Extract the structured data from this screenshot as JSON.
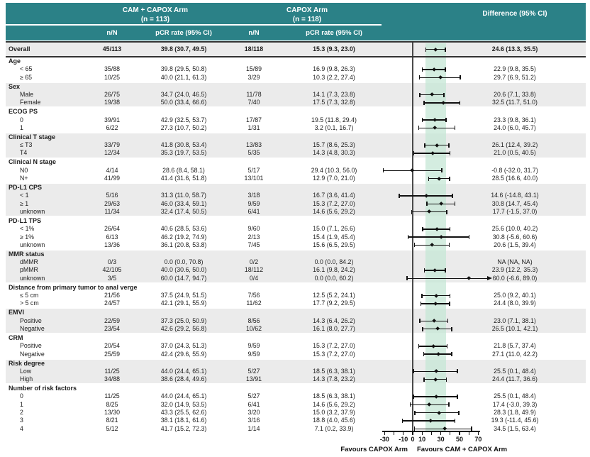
{
  "header": {
    "arm1_title": "CAM + CAPOX Arm",
    "arm1_n": "(n = 113)",
    "arm2_title": "CAPOX Arm",
    "arm2_n": "(n = 118)",
    "diff_title": "Difference (95% CI)",
    "col_nN": "n/N",
    "col_pcr": "pCR rate (95% CI)"
  },
  "footer": {
    "favours_left": "Favours CAPOX Arm",
    "favours_right": "Favours CAM + CAPOX Arm"
  },
  "colors": {
    "header_teal": "#2b8187",
    "stripe_gray": "#ebebeb",
    "band_mint": "#c6e7d6",
    "marker_black": "#111111",
    "zero_line": "#4a4a4a"
  },
  "chart_data": {
    "type": "forest",
    "x_axis": {
      "min": -30,
      "max": 70,
      "minor_ticks": [
        -30,
        -20,
        -10,
        0,
        10,
        20,
        30,
        40,
        50,
        60,
        70
      ],
      "tick_labels": [
        -30,
        -10,
        0,
        10,
        30,
        50,
        70
      ],
      "reference_line": 0
    },
    "shaded_band": [
      13.3,
      35.5
    ],
    "sections": [
      {
        "title": null,
        "overall": true,
        "shade": true,
        "items": [
          {
            "label": "Overall",
            "bold": true,
            "n1": "45/113",
            "pcr1": "39.8 (30.7, 49.5)",
            "n2": "18/118",
            "pcr2": "15.3 (9.3, 23.0)",
            "diff": "24.6 (13.3, 35.5)",
            "est": 24.6,
            "lo": 13.3,
            "hi": 35.5
          }
        ]
      },
      {
        "title": "Age",
        "shade": false,
        "items": [
          {
            "label": "< 65",
            "n1": "35/88",
            "pcr1": "39.8 (29.5, 50.8)",
            "n2": "15/89",
            "pcr2": "16.9 (9.8, 26.3)",
            "diff": "22.9 (9.8, 35.5)",
            "est": 22.9,
            "lo": 9.8,
            "hi": 35.5
          },
          {
            "label": "≥ 65",
            "n1": "10/25",
            "pcr1": "40.0 (21.1, 61.3)",
            "n2": "3/29",
            "pcr2": "10.3 (2.2, 27.4)",
            "diff": "29.7 (6.9, 51.2)",
            "est": 29.7,
            "lo": 6.9,
            "hi": 51.2
          }
        ]
      },
      {
        "title": "Sex",
        "shade": true,
        "items": [
          {
            "label": "Male",
            "n1": "26/75",
            "pcr1": "34.7 (24.0, 46.5)",
            "n2": "11/78",
            "pcr2": "14.1 (7.3, 23.8)",
            "diff": "20.6 (7.1, 33.8)",
            "est": 20.6,
            "lo": 7.1,
            "hi": 33.8
          },
          {
            "label": "Female",
            "n1": "19/38",
            "pcr1": "50.0 (33.4, 66.6)",
            "n2": "7/40",
            "pcr2": "17.5 (7.3, 32.8)",
            "diff": "32.5 (11.7, 51.0)",
            "est": 32.5,
            "lo": 11.7,
            "hi": 51.0
          }
        ]
      },
      {
        "title": "ECOG PS",
        "shade": false,
        "items": [
          {
            "label": "0",
            "n1": "39/91",
            "pcr1": "42.9 (32.5, 53.7)",
            "n2": "17/87",
            "pcr2": "19.5 (11.8, 29.4)",
            "diff": "23.3 (9.8, 36.1)",
            "est": 23.3,
            "lo": 9.8,
            "hi": 36.1
          },
          {
            "label": "1",
            "n1": "6/22",
            "pcr1": "27.3 (10.7, 50.2)",
            "n2": "1/31",
            "pcr2": "3.2 (0.1, 16.7)",
            "diff": "24.0 (6.0, 45.7)",
            "est": 24.0,
            "lo": 6.0,
            "hi": 45.7
          }
        ]
      },
      {
        "title": "Clinical T stage",
        "shade": true,
        "items": [
          {
            "label": "≤ T3",
            "n1": "33/79",
            "pcr1": "41.8 (30.8, 53.4)",
            "n2": "13/83",
            "pcr2": "15.7 (8.6, 25.3)",
            "diff": "26.1 (12.4, 39.2)",
            "est": 26.1,
            "lo": 12.4,
            "hi": 39.2
          },
          {
            "label": "T4",
            "n1": "12/34",
            "pcr1": "35.3 (19.7, 53.5)",
            "n2": "5/35",
            "pcr2": "14.3 (4.8, 30.3)",
            "diff": "21.0 (0.5, 40.5)",
            "est": 21.0,
            "lo": 0.5,
            "hi": 40.5
          }
        ]
      },
      {
        "title": "Clinical N stage",
        "shade": false,
        "items": [
          {
            "label": "N0",
            "n1": "4/14",
            "pcr1": "28.6 (8.4, 58.1)",
            "n2": "5/17",
            "pcr2": "29.4 (10.3, 56.0)",
            "diff": "-0.8 (-32.0, 31.7)",
            "est": -0.8,
            "lo": -32.0,
            "hi": 31.7
          },
          {
            "label": "N+",
            "n1": "41/99",
            "pcr1": "41.4 (31.6, 51.8)",
            "n2": "13/101",
            "pcr2": "12.9 (7.0, 21.0)",
            "diff": "28.5 (16.6, 40.0)",
            "est": 28.5,
            "lo": 16.6,
            "hi": 40.0
          }
        ]
      },
      {
        "title": "PD-L1 CPS",
        "shade": true,
        "items": [
          {
            "label": "< 1",
            "n1": "5/16",
            "pcr1": "31.3 (11.0, 58.7)",
            "n2": "3/18",
            "pcr2": "16.7 (3.6, 41.4)",
            "diff": "14.6 (-14.8, 43.1)",
            "est": 14.6,
            "lo": -14.8,
            "hi": 43.1
          },
          {
            "label": "≥ 1",
            "n1": "29/63",
            "pcr1": "46.0 (33.4, 59.1)",
            "n2": "9/59",
            "pcr2": "15.3 (7.2, 27.0)",
            "diff": "30.8 (14.7, 45.4)",
            "est": 30.8,
            "lo": 14.7,
            "hi": 45.4
          },
          {
            "label": "unknown",
            "n1": "11/34",
            "pcr1": "32.4 (17.4, 50.5)",
            "n2": "6/41",
            "pcr2": "14.6 (5.6, 29.2)",
            "diff": "17.7 (-1.5, 37.0)",
            "est": 17.7,
            "lo": -1.5,
            "hi": 37.0
          }
        ]
      },
      {
        "title": "PD-L1 TPS",
        "shade": false,
        "items": [
          {
            "label": "< 1%",
            "n1": "26/64",
            "pcr1": "40.6 (28.5, 53.6)",
            "n2": "9/60",
            "pcr2": "15.0 (7.1, 26.6)",
            "diff": "25.6 (10.0, 40.2)",
            "est": 25.6,
            "lo": 10.0,
            "hi": 40.2
          },
          {
            "label": "≥ 1%",
            "n1": "6/13",
            "pcr1": "46.2 (19.2, 74.9)",
            "n2": "2/13",
            "pcr2": "15.4 (1.9, 45.4)",
            "diff": "30.8 (-5.6, 60.6)",
            "est": 30.8,
            "lo": -5.6,
            "hi": 60.6
          },
          {
            "label": "unknown",
            "n1": "13/36",
            "pcr1": "36.1 (20.8, 53.8)",
            "n2": "7/45",
            "pcr2": "15.6 (6.5, 29.5)",
            "diff": "20.6 (1.5, 39.4)",
            "est": 20.6,
            "lo": 1.5,
            "hi": 39.4
          }
        ]
      },
      {
        "title": "MMR status",
        "shade": true,
        "items": [
          {
            "label": "dMMR",
            "n1": "0/3",
            "pcr1": "0.0 (0.0, 70.8)",
            "n2": "0/2",
            "pcr2": "0.0 (0.0, 84.2)",
            "diff": "NA (NA, NA)",
            "est": null,
            "lo": null,
            "hi": null
          },
          {
            "label": "pMMR",
            "n1": "42/105",
            "pcr1": "40.0 (30.6, 50.0)",
            "n2": "18/112",
            "pcr2": "16.1 (9.8, 24.2)",
            "diff": "23.9 (12.2, 35.3)",
            "est": 23.9,
            "lo": 12.2,
            "hi": 35.3
          },
          {
            "label": "unknown",
            "n1": "3/5",
            "pcr1": "60.0 (14.7, 94.7)",
            "n2": "0/4",
            "pcr2": "0.0 (0.0, 60.2)",
            "diff": "60.0 (-6.6, 89.0)",
            "est": 60.0,
            "lo": -6.6,
            "hi": 89.0,
            "arrow_right": true
          }
        ]
      },
      {
        "title": "Distance from primary tumor to anal verge",
        "shade": false,
        "items": [
          {
            "label": "≤ 5 cm",
            "n1": "21/56",
            "pcr1": "37.5 (24.9, 51.5)",
            "n2": "7/56",
            "pcr2": "12.5 (5.2, 24.1)",
            "diff": "25.0 (9.2, 40.1)",
            "est": 25.0,
            "lo": 9.2,
            "hi": 40.1
          },
          {
            "label": "> 5 cm",
            "n1": "24/57",
            "pcr1": "42.1 (29.1, 55.9)",
            "n2": "11/62",
            "pcr2": "17.7 (9.2, 29.5)",
            "diff": "24.4 (8.0, 39.9)",
            "est": 24.4,
            "lo": 8.0,
            "hi": 39.9
          }
        ]
      },
      {
        "title": "EMVI",
        "shade": true,
        "items": [
          {
            "label": "Positive",
            "n1": "22/59",
            "pcr1": "37.3 (25.0, 50.9)",
            "n2": "8/56",
            "pcr2": "14.3 (6.4, 26.2)",
            "diff": "23.0 (7.1, 38.1)",
            "est": 23.0,
            "lo": 7.1,
            "hi": 38.1
          },
          {
            "label": "Negative",
            "n1": "23/54",
            "pcr1": "42.6 (29.2, 56.8)",
            "n2": "10/62",
            "pcr2": "16.1 (8.0, 27.7)",
            "diff": "26.5 (10.1, 42.1)",
            "est": 26.5,
            "lo": 10.1,
            "hi": 42.1
          }
        ]
      },
      {
        "title": "CRM",
        "shade": false,
        "items": [
          {
            "label": "Positive",
            "n1": "20/54",
            "pcr1": "37.0 (24.3, 51.3)",
            "n2": "9/59",
            "pcr2": "15.3 (7.2, 27.0)",
            "diff": "21.8 (5.7, 37.4)",
            "est": 21.8,
            "lo": 5.7,
            "hi": 37.4
          },
          {
            "label": "Negative",
            "n1": "25/59",
            "pcr1": "42.4 (29.6, 55.9)",
            "n2": "9/59",
            "pcr2": "15.3 (7.2, 27.0)",
            "diff": "27.1 (11.0, 42.2)",
            "est": 27.1,
            "lo": 11.0,
            "hi": 42.2
          }
        ]
      },
      {
        "title": "Risk degree",
        "shade": true,
        "items": [
          {
            "label": "Low",
            "n1": "11/25",
            "pcr1": "44.0 (24.4, 65.1)",
            "n2": "5/27",
            "pcr2": "18.5 (6.3, 38.1)",
            "diff": "25.5 (0.1, 48.4)",
            "est": 25.5,
            "lo": 0.1,
            "hi": 48.4
          },
          {
            "label": "High",
            "n1": "34/88",
            "pcr1": "38.6 (28.4, 49.6)",
            "n2": "13/91",
            "pcr2": "14.3 (7.8, 23.2)",
            "diff": "24.4 (11.7, 36.6)",
            "est": 24.4,
            "lo": 11.7,
            "hi": 36.6
          }
        ]
      },
      {
        "title": "Number of risk factors",
        "shade": false,
        "items": [
          {
            "label": "0",
            "n1": "11/25",
            "pcr1": "44.0 (24.4, 65.1)",
            "n2": "5/27",
            "pcr2": "18.5 (6.3, 38.1)",
            "diff": "25.5 (0.1, 48.4)",
            "est": 25.5,
            "lo": 0.1,
            "hi": 48.4
          },
          {
            "label": "1",
            "n1": "8/25",
            "pcr1": "32.0 (14.9, 53.5)",
            "n2": "6/41",
            "pcr2": "14.6 (5.6, 29.2)",
            "diff": "17.4 (-3.0, 39.3)",
            "est": 17.4,
            "lo": -3.0,
            "hi": 39.3
          },
          {
            "label": "2",
            "n1": "13/30",
            "pcr1": "43.3 (25.5, 62.6)",
            "n2": "3/20",
            "pcr2": "15.0 (3.2, 37.9)",
            "diff": "28.3 (1.8, 49.9)",
            "est": 28.3,
            "lo": 1.8,
            "hi": 49.9
          },
          {
            "label": "3",
            "n1": "8/21",
            "pcr1": "38.1 (18.1, 61.6)",
            "n2": "3/16",
            "pcr2": "18.8 (4.0, 45.6)",
            "diff": "19.3 (-11.4, 45.6)",
            "est": 19.3,
            "lo": -11.4,
            "hi": 45.6
          },
          {
            "label": "4",
            "n1": "5/12",
            "pcr1": "41.7 (15.2, 72.3)",
            "n2": "1/14",
            "pcr2": "7.1 (0.2, 33.9)",
            "diff": "34.5 (1.5, 63.4)",
            "est": 34.5,
            "lo": 1.5,
            "hi": 63.4
          }
        ]
      }
    ]
  }
}
